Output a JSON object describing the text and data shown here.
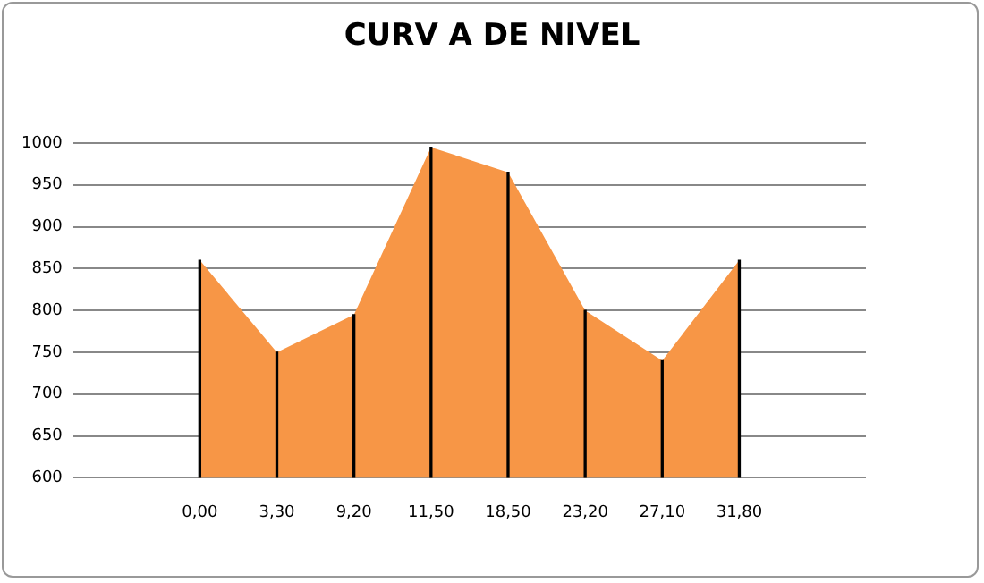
{
  "chart_data": {
    "type": "area",
    "title": "CURV A DE NIVEL",
    "categories": [
      "0,00",
      "3,30",
      "9,20",
      "11,50",
      "18,50",
      "23,20",
      "27,10",
      "31,80"
    ],
    "series": [
      {
        "color": "#f79646",
        "values": [
          860,
          750,
          795,
          995,
          965,
          800,
          740,
          860
        ]
      },
      {
        "type": "bar",
        "color": "#000000",
        "values": [
          860,
          750,
          795,
          995,
          965,
          800,
          740,
          860
        ]
      }
    ],
    "ylim": [
      600,
      1000
    ],
    "yticks": [
      600,
      650,
      700,
      750,
      800,
      850,
      900,
      950,
      1000
    ],
    "grid": "y",
    "legend": false
  }
}
